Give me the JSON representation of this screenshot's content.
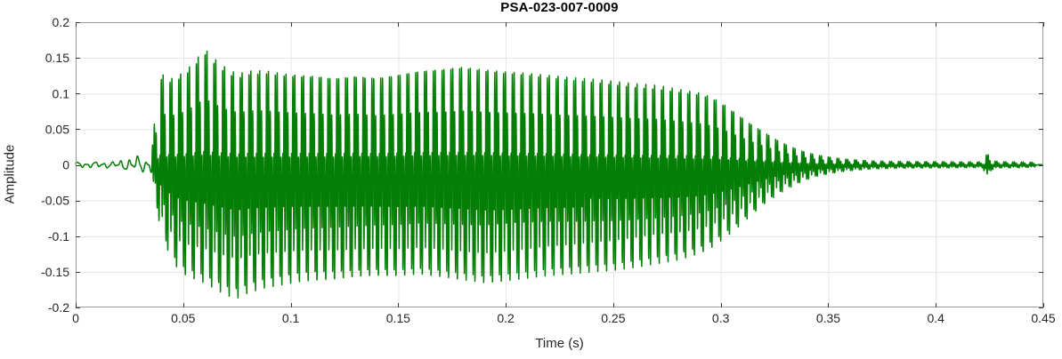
{
  "chart_data": {
    "type": "line",
    "title": "PSA-023-007-0009",
    "xlabel": "Time (s)",
    "ylabel": "Amplitude",
    "xlim": [
      0,
      0.45
    ],
    "ylim": [
      -0.2,
      0.2
    ],
    "grid": true,
    "x_ticks": [
      {
        "value": 0,
        "label": "0"
      },
      {
        "value": 0.05,
        "label": "0.05"
      },
      {
        "value": 0.1,
        "label": "0.1"
      },
      {
        "value": 0.15,
        "label": "0.15"
      },
      {
        "value": 0.2,
        "label": "0.2"
      },
      {
        "value": 0.25,
        "label": "0.25"
      },
      {
        "value": 0.3,
        "label": "0.3"
      },
      {
        "value": 0.35,
        "label": "0.35"
      },
      {
        "value": 0.4,
        "label": "0.4"
      },
      {
        "value": 0.45,
        "label": "0.45"
      }
    ],
    "y_ticks": [
      {
        "value": 0.2,
        "label": "0.2"
      },
      {
        "value": 0.15,
        "label": "0.15"
      },
      {
        "value": 0.1,
        "label": "0.1"
      },
      {
        "value": 0.05,
        "label": "0.05"
      },
      {
        "value": 0,
        "label": "0"
      },
      {
        "value": -0.05,
        "label": "-0.05"
      },
      {
        "value": -0.1,
        "label": "-0.1"
      },
      {
        "value": -0.15,
        "label": "-0.15"
      },
      {
        "value": -0.2,
        "label": "-0.2"
      }
    ],
    "colors": {
      "line": "#047e04",
      "grid": "#e6e6e6",
      "axis_box": "#999999",
      "tick": "#3a3a3a",
      "tick_text": "#262626",
      "title_text": "#000000",
      "background": "#ffffff"
    },
    "waveform": {
      "f0_hz": 245,
      "ring_hz": 1150,
      "ring_decay_per_s": 300,
      "onset_s": 0.0355,
      "pre_ripple_hz": 250,
      "trace_end_s": 0.4495,
      "blip_time_s": 0.424,
      "envelope_t_upper_lower": [
        [
          0.0,
          0.004,
          -0.004
        ],
        [
          0.018,
          0.0045,
          -0.0045
        ],
        [
          0.022,
          0.008,
          -0.007
        ],
        [
          0.026,
          0.011,
          -0.009
        ],
        [
          0.03,
          0.013,
          -0.011
        ],
        [
          0.034,
          0.009,
          -0.009
        ],
        [
          0.0355,
          0.02,
          -0.018
        ],
        [
          0.037,
          0.07,
          -0.05
        ],
        [
          0.04,
          0.125,
          -0.1
        ],
        [
          0.044,
          0.118,
          -0.13
        ],
        [
          0.048,
          0.123,
          -0.15
        ],
        [
          0.052,
          0.132,
          -0.158
        ],
        [
          0.056,
          0.145,
          -0.163
        ],
        [
          0.06,
          0.16,
          -0.168
        ],
        [
          0.064,
          0.148,
          -0.175
        ],
        [
          0.068,
          0.138,
          -0.182
        ],
        [
          0.072,
          0.13,
          -0.188
        ],
        [
          0.076,
          0.126,
          -0.19
        ],
        [
          0.08,
          0.13,
          -0.183
        ],
        [
          0.088,
          0.131,
          -0.176
        ],
        [
          0.096,
          0.127,
          -0.172
        ],
        [
          0.104,
          0.125,
          -0.168
        ],
        [
          0.112,
          0.124,
          -0.166
        ],
        [
          0.12,
          0.121,
          -0.165
        ],
        [
          0.13,
          0.124,
          -0.162
        ],
        [
          0.14,
          0.121,
          -0.16
        ],
        [
          0.15,
          0.125,
          -0.16
        ],
        [
          0.16,
          0.13,
          -0.157
        ],
        [
          0.17,
          0.132,
          -0.16
        ],
        [
          0.18,
          0.135,
          -0.164
        ],
        [
          0.19,
          0.131,
          -0.168
        ],
        [
          0.2,
          0.128,
          -0.165
        ],
        [
          0.21,
          0.126,
          -0.161
        ],
        [
          0.22,
          0.123,
          -0.157
        ],
        [
          0.23,
          0.12,
          -0.155
        ],
        [
          0.24,
          0.118,
          -0.152
        ],
        [
          0.25,
          0.115,
          -0.15
        ],
        [
          0.26,
          0.112,
          -0.146
        ],
        [
          0.27,
          0.11,
          -0.141
        ],
        [
          0.28,
          0.105,
          -0.136
        ],
        [
          0.29,
          0.1,
          -0.127
        ],
        [
          0.296,
          0.094,
          -0.118
        ],
        [
          0.302,
          0.083,
          -0.105
        ],
        [
          0.308,
          0.07,
          -0.09
        ],
        [
          0.314,
          0.057,
          -0.073
        ],
        [
          0.32,
          0.046,
          -0.057
        ],
        [
          0.326,
          0.035,
          -0.044
        ],
        [
          0.332,
          0.026,
          -0.033
        ],
        [
          0.338,
          0.019,
          -0.024
        ],
        [
          0.344,
          0.014,
          -0.017
        ],
        [
          0.35,
          0.011,
          -0.013
        ],
        [
          0.356,
          0.0085,
          -0.01
        ],
        [
          0.362,
          0.007,
          -0.008
        ],
        [
          0.37,
          0.0055,
          -0.006
        ],
        [
          0.38,
          0.0048,
          -0.005
        ],
        [
          0.395,
          0.0045,
          -0.0045
        ],
        [
          0.41,
          0.0042,
          -0.0042
        ],
        [
          0.4215,
          0.004,
          -0.004
        ],
        [
          0.4228,
          0.009,
          -0.01
        ],
        [
          0.4238,
          0.016,
          -0.018
        ],
        [
          0.4248,
          0.012,
          -0.014
        ],
        [
          0.426,
          0.006,
          -0.007
        ],
        [
          0.429,
          0.0045,
          -0.0045
        ],
        [
          0.44,
          0.004,
          -0.004
        ],
        [
          0.446,
          0.0035,
          -0.0035
        ],
        [
          0.4468,
          0.0007,
          -0.0007
        ],
        [
          0.4495,
          0.0005,
          -0.0005
        ]
      ]
    }
  }
}
